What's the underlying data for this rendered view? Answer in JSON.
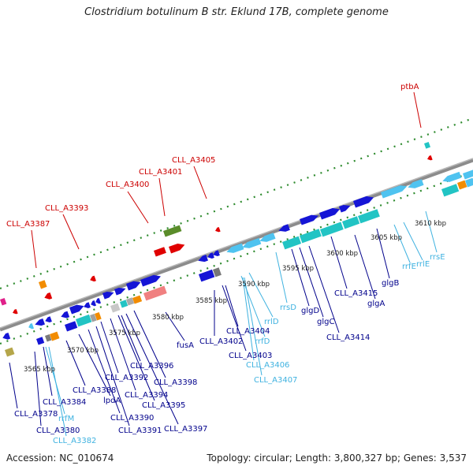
{
  "title": "Clostridium botulinum B str. Eklund 17B, complete genome",
  "footer": {
    "accession": "Accession: NC_010674",
    "info": "Topology: circular; Length: 3,800,327 bp; Genes: 3,537"
  },
  "colors": {
    "top_label": "#cc0000",
    "bottom_label": "#00008b",
    "rna_label": "#3fb2e0",
    "backbone": "#8c8c8c",
    "tick": "#2e8b2e",
    "gene_blue": "#1515d6",
    "gene_teal": "#22c4c4",
    "gene_lightblue": "#4fc3f0",
    "gene_red": "#e00000",
    "gene_olive": "#5a8c2a"
  },
  "kbp_ticks": [
    {
      "label": "3565 kbp",
      "kbp": 3565
    },
    {
      "label": "3570 kbp",
      "kbp": 3570
    },
    {
      "label": "3575 kbp",
      "kbp": 3575
    },
    {
      "label": "3580 kbp",
      "kbp": 3580
    },
    {
      "label": "3585 kbp",
      "kbp": 3585
    },
    {
      "label": "3590 kbp",
      "kbp": 3590
    },
    {
      "label": "3595 kbp",
      "kbp": 3595
    },
    {
      "label": "3600 kbp",
      "kbp": 3600
    },
    {
      "label": "3605 kbp",
      "kbp": 3605
    },
    {
      "label": "3610 kbp",
      "kbp": 3610
    }
  ],
  "top_labels": [
    "CLL_A3387",
    "CLL_A3393",
    "CLL_A3400",
    "CLL_A3401",
    "CLL_A3405",
    "ptbA"
  ],
  "bottom_labels": [
    "CLL_A3378",
    "CLL_A3380",
    "CLL_A3384",
    "rrfM",
    "CLL_A3382",
    "CLL_A3388",
    "lpdA",
    "CLL_A3390",
    "CLL_A3391",
    "CLL_A3392",
    "CLL_A3394",
    "CLL_A3395",
    "CLL_A3396",
    "CLL_A3397",
    "CLL_A3398",
    "fusA",
    "CLL_A3402",
    "CLL_A3403",
    "CLL_A3404",
    "rrlD",
    "rrfD",
    "CLL_A3406",
    "CLL_A3407",
    "rrsD",
    "glgD",
    "glgC",
    "CLL_A3414",
    "CLL_A3415",
    "glgA",
    "glgB",
    "rrfE",
    "rrlE",
    "rrsE"
  ]
}
